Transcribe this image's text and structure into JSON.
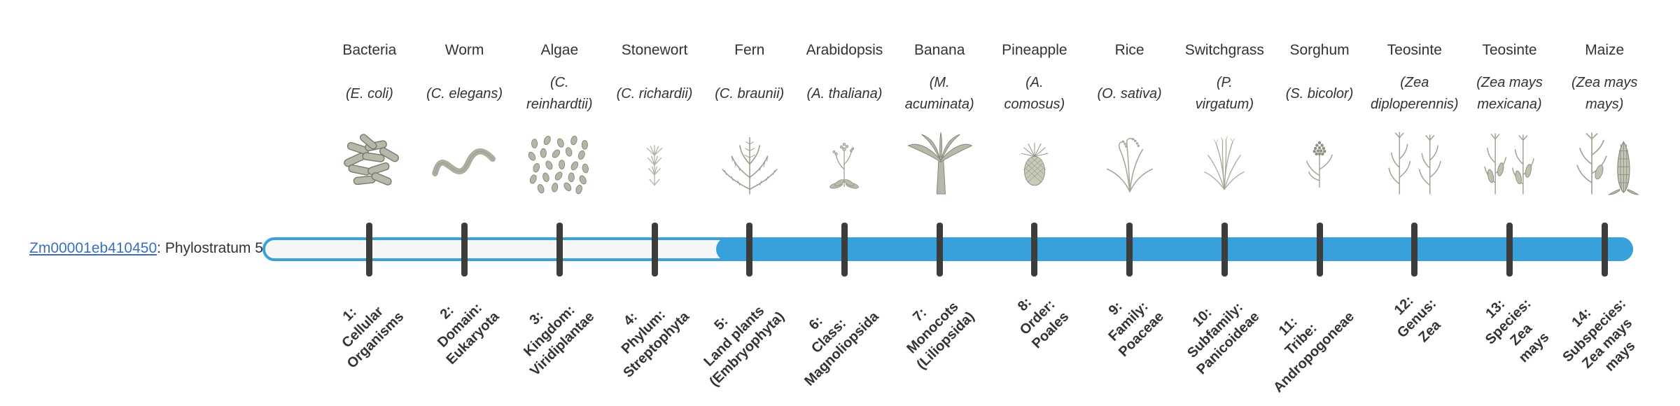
{
  "gene_label": {
    "link": "Zm00001eb410450",
    "suffix": ": Phylostratum 5"
  },
  "colors": {
    "bar_fill": "#38a0db",
    "bar_empty": "#f6f6f6",
    "tick": "#3c3c3c",
    "link": "#3b6fbe",
    "text": "#333333"
  },
  "bar": {
    "total_strata": 14,
    "filled_from_stratum": 5
  },
  "columns": [
    {
      "name": "Bacteria",
      "sci": "(E. coli)",
      "icon": "bacteria-icon",
      "label": "1:\nCellular\nOrganisms"
    },
    {
      "name": "Worm",
      "sci": "(C. elegans)",
      "icon": "worm-icon",
      "label": "2:\nDomain:\nEukaryota"
    },
    {
      "name": "Algae",
      "sci": "(C.\nreinhardtii)",
      "icon": "algae-icon",
      "label": "3:\nKingdom:\nViridiplantae"
    },
    {
      "name": "Stonewort",
      "sci": "(C. richardii)",
      "icon": "stonewort-icon",
      "label": "4:\nPhylum:\nStreptophyta"
    },
    {
      "name": "Fern",
      "sci": "(C. braunii)",
      "icon": "fern-icon",
      "label": "5:\nLand plants\n(Embryophyta)"
    },
    {
      "name": "Arabidopsis",
      "sci": "(A. thaliana)",
      "icon": "arabidopsis-icon",
      "label": "6:\nClass:\nMagnoliopsida"
    },
    {
      "name": "Banana",
      "sci": "(M.\nacuminata)",
      "icon": "banana-icon",
      "label": "7:\nMonocots\n(Liliopsida)"
    },
    {
      "name": "Pineapple",
      "sci": "(A.\ncomosus)",
      "icon": "pineapple-icon",
      "label": "8:\nOrder:\nPoales"
    },
    {
      "name": "Rice",
      "sci": "(O. sativa)",
      "icon": "rice-icon",
      "label": "9:\nFamily:\nPoaceae"
    },
    {
      "name": "Switchgrass",
      "sci": "(P.\nvirgatum)",
      "icon": "switchgrass-icon",
      "label": "10:\nSubfamily:\nPanicoideae"
    },
    {
      "name": "Sorghum",
      "sci": "(S. bicolor)",
      "icon": "sorghum-icon",
      "label": "11:\nTribe:\nAndropogoneae"
    },
    {
      "name": "Teosinte",
      "sci": "(Zea\ndiploperennis)",
      "icon": "teosinte-diploperennis-icon",
      "label": "12:\nGenus:\nZea"
    },
    {
      "name": "Teosinte",
      "sci": "(Zea mays\nmexicana)",
      "icon": "teosinte-mexicana-icon",
      "label": "13:\nSpecies:\nZea\nmays"
    },
    {
      "name": "Maize",
      "sci": "(Zea mays\nmays)",
      "icon": "maize-icon",
      "label": "14:\nSubspecies:\nZea mays\nmays"
    }
  ],
  "chart_data": {
    "type": "bar",
    "title": "Zm00001eb410450: Phylostratum 5",
    "gene": "Zm00001eb410450",
    "phylostratum": 5,
    "categories": [
      "1: Cellular Organisms",
      "2: Domain: Eukaryota",
      "3: Kingdom: Viridiplantae",
      "4: Phylum: Streptophyta",
      "5: Land plants (Embryophyta)",
      "6: Class: Magnoliopsida",
      "7: Monocots (Liliopsida)",
      "8: Order: Poales",
      "9: Family: Poaceae",
      "10: Subfamily: Panicoideae",
      "11: Tribe: Andropogoneae",
      "12: Genus: Zea",
      "13: Species: Zea mays",
      "14: Subspecies: Zea mays mays"
    ],
    "values": [
      0,
      0,
      0,
      0,
      1,
      1,
      1,
      1,
      1,
      1,
      1,
      1,
      1,
      1
    ],
    "taxa": [
      "Bacteria (E. coli)",
      "Worm (C. elegans)",
      "Algae (C. reinhardtii)",
      "Stonewort (C. richardii)",
      "Fern (C. braunii)",
      "Arabidopsis (A. thaliana)",
      "Banana (M. acuminata)",
      "Pineapple (A. comosus)",
      "Rice (O. sativa)",
      "Switchgrass (P. virgatum)",
      "Sorghum (S. bicolor)",
      "Teosinte (Zea diploperennis)",
      "Teosinte (Zea mays mexicana)",
      "Maize (Zea mays mays)"
    ],
    "legend": "off",
    "grid": "off"
  }
}
